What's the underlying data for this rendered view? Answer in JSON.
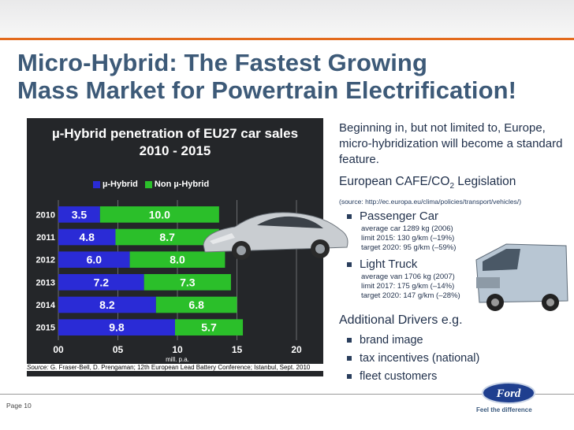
{
  "title_line1": "Micro-Hybrid: The Fastest Growing",
  "title_line2": "Mass Market for Powertrain Electrification!",
  "chart_data": {
    "type": "bar",
    "title": "µ-Hybrid penetration of EU27 car sales",
    "subtitle": "2010 - 2015",
    "categories": [
      "2010",
      "2011",
      "2012",
      "2013",
      "2014",
      "2015"
    ],
    "series": [
      {
        "name": "µ-Hybrid",
        "color": "#2a2bd6",
        "values": [
          3.5,
          4.8,
          6.0,
          7.2,
          8.2,
          9.8
        ],
        "labels": [
          "3.5",
          "4.8",
          "6.0",
          "7.2",
          "8.2",
          "9.8"
        ]
      },
      {
        "name": "Non µ-Hybrid",
        "color": "#2bbf2a",
        "values": [
          10.0,
          8.7,
          8.0,
          7.3,
          6.8,
          5.7
        ],
        "labels": [
          "10.0",
          "8.7",
          "8.0",
          "7.3",
          "6.8",
          "5.7"
        ]
      }
    ],
    "stacked": true,
    "orientation": "horizontal",
    "xlabel": "mill. p.a.",
    "xticks": [
      "00",
      "05",
      "10",
      "15",
      "20"
    ],
    "xlim": [
      0,
      20
    ]
  },
  "source": "Source: G. Fraser-Bell, D. Prengaman; 12th European Lead Battery Conference; Istanbul, Sept. 2010",
  "source_label": "Source:",
  "source_text": "G. Fraser-Bell, D. Prengaman; 12th European Lead Battery Conference; Istanbul, Sept. 2010",
  "intro": "Beginning in, but not limited to, Europe, micro-hybridization will become a standard feature.",
  "cafe_heading": "European CAFE/CO",
  "cafe_sub": "2",
  "cafe_heading_end": " Legislation",
  "cafe_source": "(source: http://ec.europa.eu/clima/policies/transport/vehicles/)",
  "passenger": {
    "label": "Passenger Car",
    "lines": [
      "average car 1289 kg (2006)",
      "limit 2015: 130 g/km (–19%)",
      "target 2020: 95 g/km (–59%)"
    ]
  },
  "truck": {
    "label": "Light Truck",
    "lines": [
      "average van 1706 kg (2007)",
      "limit 2017: 175 g/km (–14%)",
      "target 2020: 147 g/km (–28%)"
    ]
  },
  "drivers_heading": "Additional Drivers e.g.",
  "drivers": [
    "brand image",
    "tax incentives (national)",
    "fleet customers"
  ],
  "footer": {
    "page": "Page 10",
    "brand": "Ford",
    "tagline": "Feel the difference"
  }
}
